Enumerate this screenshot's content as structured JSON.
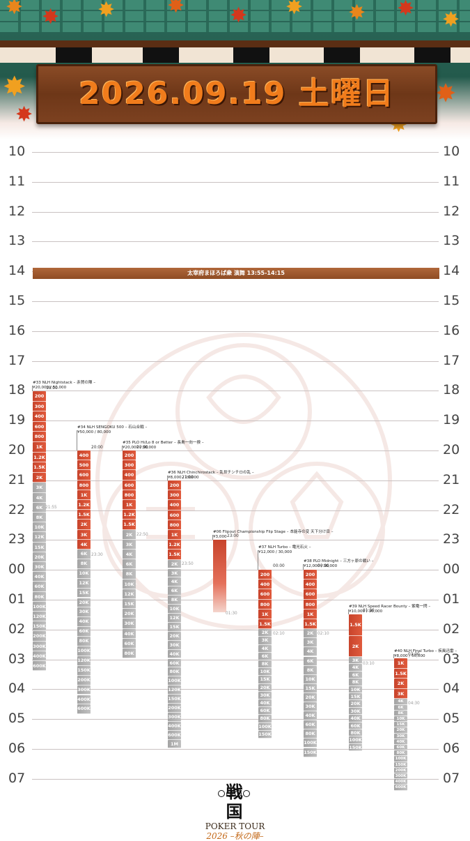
{
  "header": {
    "date_title": "2026.09.19 土曜日"
  },
  "hours": [
    "10",
    "11",
    "12",
    "13",
    "14",
    "15",
    "16",
    "17",
    "18",
    "19",
    "20",
    "21",
    "22",
    "23",
    "00",
    "01",
    "02",
    "03",
    "04",
    "05",
    "06",
    "07"
  ],
  "show": {
    "label": "太宰府まほろば衆 演舞 13:55-14:15"
  },
  "events": [
    {
      "title": "#33 NLH Nightstack – 赤賀の陣 –",
      "buyin": "¥20,000 / 50,000",
      "start": "18:00",
      "late": "21:55",
      "red": [
        "200",
        "300",
        "400",
        "600",
        "800",
        "1K",
        "1.2K",
        "1.5K",
        "2K"
      ],
      "gray": [
        "3K",
        "4K",
        "6K",
        "8K",
        "10K",
        "12K",
        "15K",
        "20K",
        "30K",
        "40K",
        "60K",
        "80K",
        "100K",
        "120K",
        "150K",
        "200K",
        "300K",
        "400K",
        "600K"
      ]
    },
    {
      "title": "#34 NLH SENGOKU 500 – 石山合戦 –",
      "buyin": "¥50,000 / 80,000",
      "start": "20:00",
      "late": "23:30",
      "red": [
        "400",
        "500",
        "600",
        "800",
        "1K",
        "1.2K",
        "1.5K",
        "2K",
        "3K",
        "4K"
      ],
      "gray": [
        "6K",
        "8K",
        "10K",
        "12K",
        "15K",
        "20K",
        "30K",
        "40K",
        "60K",
        "80K",
        "100K",
        "120K",
        "150K",
        "200K",
        "300K",
        "400K",
        "600K"
      ]
    },
    {
      "title": "#35 PLO Hi/Lo 8 or Better – 長島一向一揆 –",
      "buyin": "¥20,000 / 30,000",
      "start": "20:00",
      "late": "22:50",
      "red": [
        "200",
        "300",
        "400",
        "600",
        "800",
        "1K",
        "1.2K",
        "1.5K"
      ],
      "gray": [
        "2K",
        "3K",
        "4K",
        "6K",
        "8K",
        "10K",
        "12K",
        "15K",
        "20K",
        "30K",
        "40K",
        "60K",
        "80K"
      ]
    },
    {
      "title": "#36 NLH Chinchirostack – 乱世チンチロの乱 –",
      "buyin": "¥8,000 / 20,000",
      "start": "21:00",
      "late": "23:50",
      "red": [
        "200",
        "300",
        "400",
        "600",
        "800",
        "1K",
        "1.2K",
        "1.5K"
      ],
      "gray": [
        "2K",
        "3K",
        "4K",
        "6K",
        "8K",
        "10K",
        "12K",
        "15K",
        "20K",
        "30K",
        "40K",
        "60K",
        "80K",
        "100K",
        "120K",
        "150K",
        "200K",
        "300K",
        "400K",
        "600K",
        "1M"
      ]
    },
    {
      "title": "#06 Flipout Championship Flip Stage – 本能寺の変 天下分け目 –",
      "buyin": "¥3,000",
      "start": "23:00",
      "late": "01:30"
    },
    {
      "title": "#37 NLH Turbo – 電光石火 –",
      "buyin": "¥12,000 / 30,000",
      "start": "00:00",
      "late": "02:10",
      "red": [
        "200",
        "400",
        "600",
        "800",
        "1K",
        "1.5K"
      ],
      "gray": [
        "2K",
        "3K",
        "4K",
        "6K",
        "8K",
        "10K",
        "15K",
        "20K",
        "30K",
        "40K",
        "60K",
        "80K",
        "100K",
        "150K"
      ]
    },
    {
      "title": "#38 PLO Midnight – 三方ヶ原の戦い –",
      "buyin": "¥12,000 / 30,000",
      "start": "00:00",
      "late": "02:10",
      "red": [
        "200",
        "400",
        "600",
        "800",
        "1K",
        "1.5K"
      ],
      "gray": [
        "2K",
        "3K",
        "4K",
        "6K",
        "8K",
        "10K",
        "15K",
        "20K",
        "30K",
        "40K",
        "60K",
        "80K",
        "100K",
        "150K"
      ]
    },
    {
      "title": "#39 NLH Speed Racer Bounty – 紫電一閃 –",
      "buyin": "¥10,000 / 30,000",
      "start": "01:30",
      "late": "03:10",
      "red": [
        "1.5K",
        "2K"
      ],
      "gray": [
        "3K",
        "4K",
        "6K",
        "8K",
        "10K",
        "15K",
        "20K",
        "30K",
        "40K",
        "60K",
        "80K",
        "100K",
        "150K"
      ]
    },
    {
      "title": "#40 NLH Final Turbo – 疾風迅雷 –",
      "buyin": "¥8,000 / 50,000",
      "start": "03:00",
      "late": "04:30",
      "red": [
        "1K",
        "1.5K",
        "2K",
        "3K"
      ],
      "gray": [
        "4K",
        "6K",
        "8K",
        "10K",
        "15K",
        "20K",
        "30K",
        "40K",
        "60K",
        "80K",
        "100K",
        "150K",
        "200K",
        "300K",
        "400K",
        "600K"
      ]
    }
  ],
  "logo": {
    "kanji": "戦国",
    "name": "POKER TOUR",
    "sub": "2026 –秋の陣–"
  },
  "colors": {
    "accent": "#c8442c",
    "gray_level": "#a4a4a4",
    "title_orange": "#f07c1c",
    "wood": "#7c4120"
  }
}
